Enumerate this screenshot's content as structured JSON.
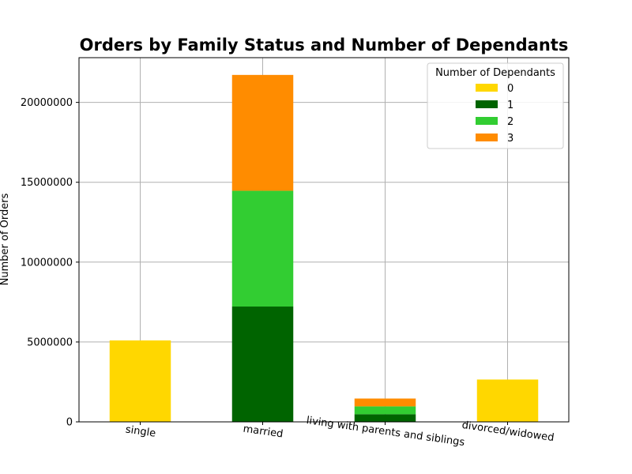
{
  "chart_data": {
    "type": "bar",
    "stacked": true,
    "title": "Orders by Family Status and Number of Dependants",
    "xlabel": "",
    "ylabel": "Number of Orders",
    "categories": [
      "single",
      "married",
      "living with parents and siblings",
      "divorced/widowed"
    ],
    "series": [
      {
        "name": "0",
        "color": "#FFD700",
        "values": [
          5100000,
          0,
          0,
          2650000
        ]
      },
      {
        "name": "1",
        "color": "#006400",
        "values": [
          0,
          7220000,
          480000,
          0
        ]
      },
      {
        "name": "2",
        "color": "#32CD32",
        "values": [
          0,
          7250000,
          490000,
          0
        ]
      },
      {
        "name": "3",
        "color": "#FF8C00",
        "values": [
          0,
          7250000,
          490000,
          0
        ]
      }
    ],
    "ylim": [
      0,
      22800000
    ],
    "yticks": [
      0,
      5000000,
      10000000,
      15000000,
      20000000
    ],
    "ytick_labels": [
      "0",
      "5000000",
      "10000000",
      "15000000",
      "20000000"
    ],
    "grid": true,
    "legend": {
      "title": "Number of Dependants",
      "placement": "top-right"
    }
  }
}
